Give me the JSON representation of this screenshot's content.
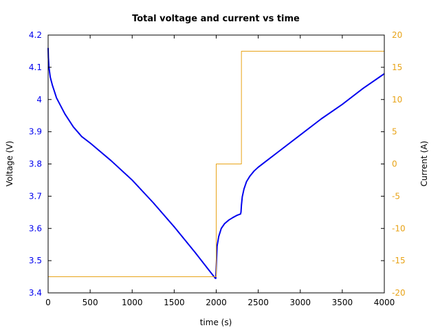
{
  "chart_data": {
    "type": "line",
    "title": "Total voltage and current vs time",
    "xlabel": "time (s)",
    "ylabel_left": "Voltage (V)",
    "ylabel_right": "Current (A)",
    "xlim": [
      0,
      4000
    ],
    "ylim_left": [
      3.4,
      4.2
    ],
    "ylim_right": [
      -20,
      20
    ],
    "x_ticks": [
      "0",
      "500",
      "1000",
      "1500",
      "2000",
      "2500",
      "3000",
      "3500",
      "4000"
    ],
    "y_ticks_left": [
      "3.4",
      "3.5",
      "3.6",
      "3.7",
      "3.8",
      "3.9",
      "4",
      "4.1",
      "4.2"
    ],
    "y_ticks_right": [
      "-20",
      "-15",
      "-10",
      "-5",
      "0",
      "5",
      "10",
      "15",
      "20"
    ],
    "grid": false,
    "legend": "none",
    "colors": {
      "voltage": "#0000ee",
      "current": "#e8a317",
      "left_axis_text": "#0000ee",
      "right_axis_text": "#e8a317"
    },
    "series": [
      {
        "axis": "left",
        "x": [
          0,
          3,
          10,
          25,
          50,
          100,
          200,
          300,
          400,
          500,
          750,
          1000,
          1250,
          1500,
          1750,
          1900,
          1990,
          1995,
          2000,
          2010,
          2030,
          2060,
          2100,
          2150,
          2200,
          2250,
          2290,
          2295,
          2300,
          2310,
          2330,
          2360,
          2400,
          2450,
          2500,
          2750,
          3000,
          3250,
          3500,
          3750,
          4000
        ],
        "y": [
          4.16,
          4.13,
          4.1,
          4.07,
          4.045,
          4.005,
          3.955,
          3.915,
          3.885,
          3.865,
          3.81,
          3.75,
          3.68,
          3.605,
          3.525,
          3.475,
          3.445,
          3.445,
          3.482,
          3.545,
          3.575,
          3.6,
          3.615,
          3.626,
          3.634,
          3.641,
          3.645,
          3.651,
          3.672,
          3.698,
          3.722,
          3.745,
          3.762,
          3.778,
          3.79,
          3.84,
          3.89,
          3.94,
          3.985,
          4.035,
          4.08
        ]
      },
      {
        "axis": "right",
        "x": [
          0,
          2000,
          2000,
          2300,
          2300,
          4000
        ],
        "y": [
          -17.5,
          -17.5,
          0,
          0,
          17.5,
          17.5
        ]
      }
    ]
  }
}
